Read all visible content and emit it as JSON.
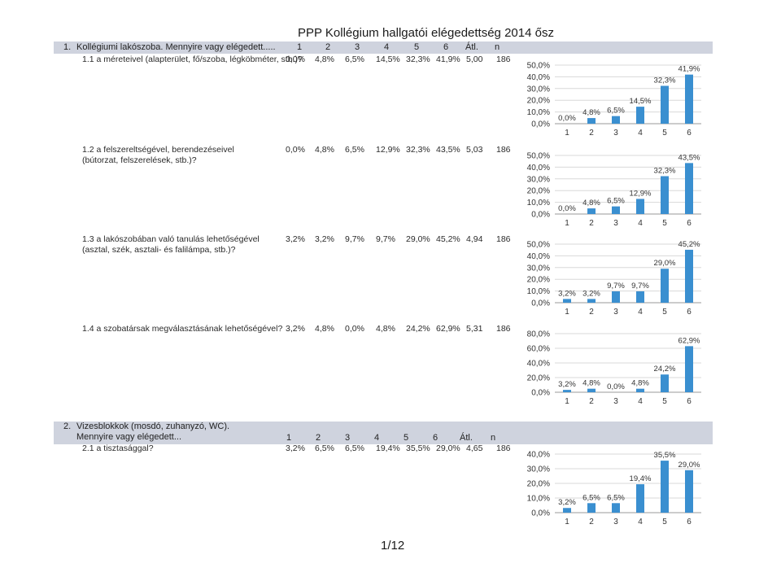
{
  "title": "PPP Kollégium hallgatói elégedettség 2014 ősz",
  "page_number": "1/12",
  "sections": [
    {
      "header": {
        "num": "1.",
        "label": "Kollégiumi lakószoba. Mennyire vagy elégedett.....",
        "cols": [
          "1",
          "2",
          "3",
          "4",
          "5",
          "6",
          "Átl.",
          "n"
        ]
      },
      "questions": [
        {
          "label": "1.1 a méreteivel (alapterület, fő/szoba, légköbméter, stb.)?",
          "values": [
            "0,0%",
            "4,8%",
            "6,5%",
            "14,5%",
            "32,3%",
            "41,9%",
            "5,00",
            "186"
          ]
        },
        {
          "label": "1.2 a felszereltségével, berendezéseivel (bútorzat, felszerelések, stb.)?",
          "values": [
            "0,0%",
            "4,8%",
            "6,5%",
            "12,9%",
            "32,3%",
            "43,5%",
            "5,03",
            "186"
          ]
        },
        {
          "label": "1.3 a lakószobában való tanulás lehetőségével (asztal, szék, asztali- és falilámpa, stb.)?",
          "values": [
            "3,2%",
            "3,2%",
            "9,7%",
            "9,7%",
            "29,0%",
            "45,2%",
            "4,94",
            "186"
          ]
        },
        {
          "label": "1.4 a szobatársak megválasztásának lehetőségével?",
          "values": [
            "3,2%",
            "4,8%",
            "0,0%",
            "4,8%",
            "24,2%",
            "62,9%",
            "5,31",
            "186"
          ]
        }
      ]
    },
    {
      "header": {
        "num": "2.",
        "label": "Vizesblokkok (mosdó, zuhanyzó, WC). Mennyire vagy elégedett...",
        "cols": [
          "1",
          "2",
          "3",
          "4",
          "5",
          "6",
          "Átl.",
          "n"
        ]
      },
      "questions": [
        {
          "label": "2.1 a tisztasággal?",
          "values": [
            "3,2%",
            "6,5%",
            "6,5%",
            "19,4%",
            "35,5%",
            "29,0%",
            "4,65",
            "186"
          ]
        }
      ]
    }
  ],
  "chart_data": [
    {
      "type": "bar",
      "categories": [
        "1",
        "2",
        "3",
        "4",
        "5",
        "6"
      ],
      "values": [
        0.0,
        4.8,
        6.5,
        14.5,
        32.3,
        41.9
      ],
      "labels": [
        "0,0%",
        "4,8%",
        "6,5%",
        "14,5%",
        "32,3%",
        "41,9%"
      ],
      "yticks": [
        "0,0%",
        "10,0%",
        "20,0%",
        "30,0%",
        "40,0%",
        "50,0%"
      ],
      "ylim": [
        0,
        50
      ],
      "color": "#3a8fd0"
    },
    {
      "type": "bar",
      "categories": [
        "1",
        "2",
        "3",
        "4",
        "5",
        "6"
      ],
      "values": [
        0.0,
        4.8,
        6.5,
        12.9,
        32.3,
        43.5
      ],
      "labels": [
        "0,0%",
        "4,8%",
        "6,5%",
        "12,9%",
        "32,3%",
        "43,5%"
      ],
      "yticks": [
        "0,0%",
        "10,0%",
        "20,0%",
        "30,0%",
        "40,0%",
        "50,0%"
      ],
      "ylim": [
        0,
        50
      ],
      "color": "#3a8fd0"
    },
    {
      "type": "bar",
      "categories": [
        "1",
        "2",
        "3",
        "4",
        "5",
        "6"
      ],
      "values": [
        3.2,
        3.2,
        9.7,
        9.7,
        29.0,
        45.2
      ],
      "labels": [
        "3,2%",
        "3,2%",
        "9,7%",
        "9,7%",
        "29,0%",
        "45,2%"
      ],
      "yticks": [
        "0,0%",
        "10,0%",
        "20,0%",
        "30,0%",
        "40,0%",
        "50,0%"
      ],
      "ylim": [
        0,
        50
      ],
      "color": "#3a8fd0"
    },
    {
      "type": "bar",
      "categories": [
        "1",
        "2",
        "3",
        "4",
        "5",
        "6"
      ],
      "values": [
        3.2,
        4.8,
        0.0,
        4.8,
        24.2,
        62.9
      ],
      "labels": [
        "3,2%",
        "4,8%",
        "0,0%",
        "4,8%",
        "24,2%",
        "62,9%"
      ],
      "yticks": [
        "0,0%",
        "20,0%",
        "40,0%",
        "60,0%",
        "80,0%"
      ],
      "ylim": [
        0,
        80
      ],
      "color": "#3a8fd0"
    },
    {
      "type": "bar",
      "categories": [
        "1",
        "2",
        "3",
        "4",
        "5",
        "6"
      ],
      "values": [
        3.2,
        6.5,
        6.5,
        19.4,
        35.5,
        29.0
      ],
      "labels": [
        "3,2%",
        "6,5%",
        "6,5%",
        "19,4%",
        "35,5%",
        "29,0%"
      ],
      "yticks": [
        "0,0%",
        "10,0%",
        "20,0%",
        "30,0%",
        "40,0%"
      ],
      "ylim": [
        0,
        40
      ],
      "color": "#3a8fd0"
    }
  ]
}
